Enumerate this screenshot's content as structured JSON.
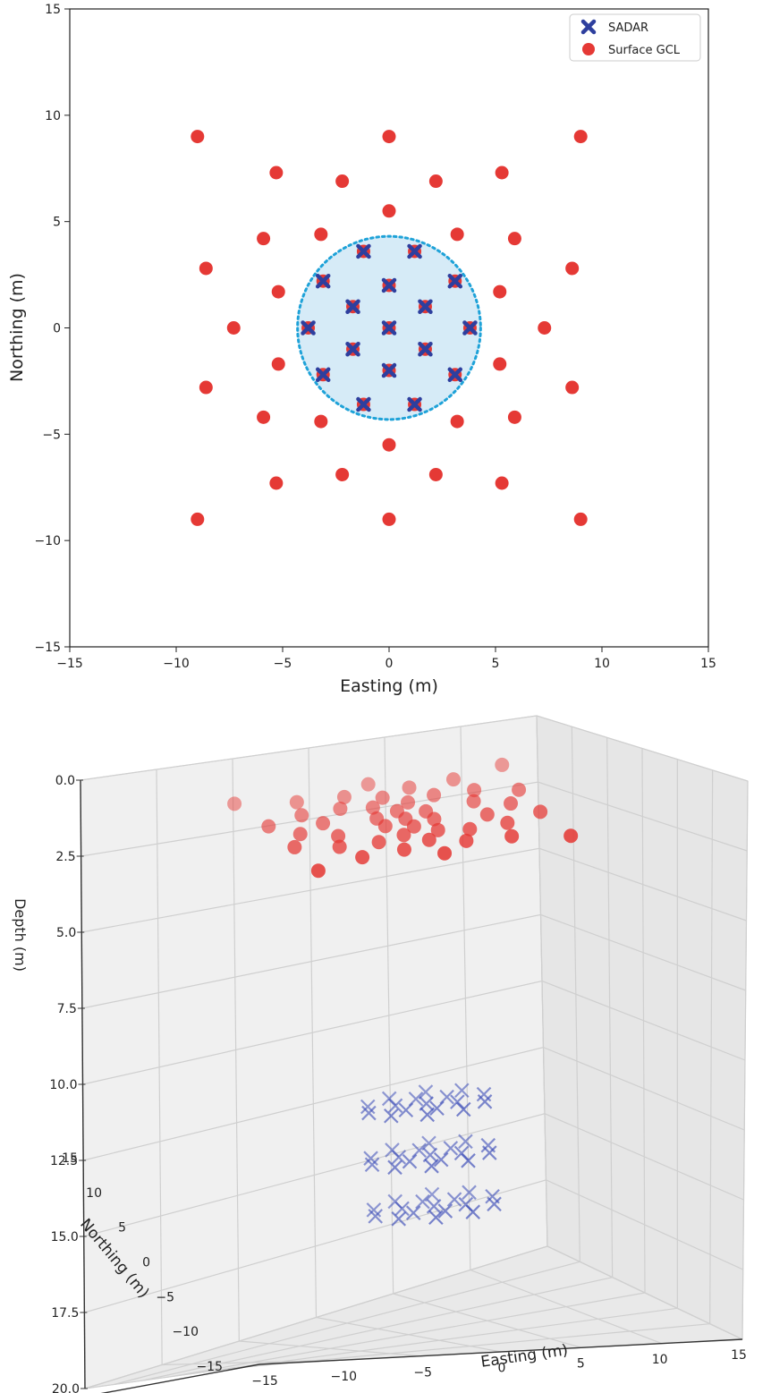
{
  "chart_data": [
    {
      "type": "scatter",
      "xlabel": "Easting (m)",
      "ylabel": "Northing (m)",
      "xlim": [
        -15,
        15
      ],
      "ylim": [
        -15,
        15
      ],
      "xticks": [
        "−15",
        "−10",
        "−5",
        "0",
        "5",
        "10",
        "15"
      ],
      "yticks": [
        "15",
        "10",
        "5",
        "0",
        "−5",
        "−10",
        "−15"
      ],
      "xtick_values": [
        -15,
        -10,
        -5,
        0,
        5,
        10,
        15
      ],
      "ytick_values": [
        15,
        10,
        5,
        0,
        -5,
        -10,
        -15
      ],
      "legend": {
        "position": "top-right",
        "entries": [
          "SADAR",
          "Surface GCL"
        ]
      },
      "circle": {
        "center": [
          0,
          0
        ],
        "radius": 4.3
      },
      "series": [
        {
          "name": "SADAR",
          "marker": "X",
          "color": "#2e3f9e",
          "points": [
            [
              -1.2,
              3.6
            ],
            [
              1.2,
              3.6
            ],
            [
              -3.1,
              2.2
            ],
            [
              0,
              2.0
            ],
            [
              3.1,
              2.2
            ],
            [
              -1.7,
              1.0
            ],
            [
              1.7,
              1.0
            ],
            [
              -3.8,
              0
            ],
            [
              0,
              0
            ],
            [
              3.8,
              0
            ],
            [
              -1.7,
              -1.0
            ],
            [
              1.7,
              -1.0
            ],
            [
              -3.1,
              -2.2
            ],
            [
              0,
              -2.0
            ],
            [
              3.1,
              -2.2
            ],
            [
              -1.2,
              -3.6
            ],
            [
              1.2,
              -3.6
            ]
          ]
        },
        {
          "name": "Surface GCL",
          "marker": "o",
          "color": "#e53935",
          "points": [
            [
              -9,
              9
            ],
            [
              0,
              9
            ],
            [
              9,
              9
            ],
            [
              -5.3,
              7.3
            ],
            [
              -2.2,
              6.9
            ],
            [
              2.2,
              6.9
            ],
            [
              5.3,
              7.3
            ],
            [
              0,
              5.5
            ],
            [
              -5.9,
              4.2
            ],
            [
              -3.2,
              4.4
            ],
            [
              3.2,
              4.4
            ],
            [
              5.9,
              4.2
            ],
            [
              -8.6,
              2.8
            ],
            [
              8.6,
              2.8
            ],
            [
              -5.2,
              1.7
            ],
            [
              5.2,
              1.7
            ],
            [
              -7.3,
              0
            ],
            [
              7.3,
              0
            ],
            [
              -5.2,
              -1.7
            ],
            [
              5.2,
              -1.7
            ],
            [
              -8.6,
              -2.8
            ],
            [
              8.6,
              -2.8
            ],
            [
              -5.9,
              -4.2
            ],
            [
              -3.2,
              -4.4
            ],
            [
              3.2,
              -4.4
            ],
            [
              5.9,
              -4.2
            ],
            [
              0,
              -5.5
            ],
            [
              -5.3,
              -7.3
            ],
            [
              -2.2,
              -6.9
            ],
            [
              2.2,
              -6.9
            ],
            [
              5.3,
              -7.3
            ],
            [
              -9,
              -9
            ],
            [
              0,
              -9
            ],
            [
              9,
              -9
            ],
            [
              -1.2,
              3.6
            ],
            [
              1.2,
              3.6
            ],
            [
              -3.1,
              2.2
            ],
            [
              0,
              2.0
            ],
            [
              3.1,
              2.2
            ],
            [
              -1.7,
              1.0
            ],
            [
              1.7,
              1.0
            ],
            [
              -3.8,
              0
            ],
            [
              0,
              0
            ],
            [
              3.8,
              0
            ],
            [
              -1.7,
              -1.0
            ],
            [
              1.7,
              -1.0
            ],
            [
              -3.1,
              -2.2
            ],
            [
              0,
              -2.0
            ],
            [
              3.1,
              -2.2
            ],
            [
              -1.2,
              -3.6
            ],
            [
              1.2,
              -3.6
            ]
          ]
        }
      ]
    },
    {
      "type": "scatter3d",
      "xlabel": "Easting (m)",
      "ylabel": "Northing (m)",
      "zlabel": "Depth (m)",
      "xlim": [
        -15,
        15
      ],
      "ylim": [
        -15,
        15
      ],
      "zlim": [
        0,
        20
      ],
      "zinverted": true,
      "xticks": [
        "−15",
        "−10",
        "−5",
        "0",
        "5",
        "10",
        "15"
      ],
      "yticks": [
        "15",
        "10",
        "5",
        "0",
        "−5",
        "−10",
        "−15"
      ],
      "zticks": [
        "0.0",
        "2.5",
        "5.0",
        "7.5",
        "10.0",
        "12.5",
        "15.0",
        "17.5",
        "20.0"
      ],
      "xtick_values": [
        -15,
        -10,
        -5,
        0,
        5,
        10,
        15
      ],
      "ytick_values": [
        15,
        10,
        5,
        0,
        -5,
        -10,
        -15
      ],
      "ztick_values": [
        0,
        2.5,
        5,
        7.5,
        10,
        12.5,
        15,
        17.5,
        20
      ],
      "series": [
        {
          "name": "Surface GCL",
          "marker": "o",
          "color": "#e53935",
          "depth": 0,
          "points": [
            [
              -9,
              9
            ],
            [
              0,
              9
            ],
            [
              9,
              9
            ],
            [
              -5.3,
              7.3
            ],
            [
              -2.2,
              6.9
            ],
            [
              2.2,
              6.9
            ],
            [
              5.3,
              7.3
            ],
            [
              0,
              5.5
            ],
            [
              -5.9,
              4.2
            ],
            [
              -3.2,
              4.4
            ],
            [
              3.2,
              4.4
            ],
            [
              5.9,
              4.2
            ],
            [
              -8.6,
              2.8
            ],
            [
              8.6,
              2.8
            ],
            [
              -5.2,
              1.7
            ],
            [
              5.2,
              1.7
            ],
            [
              -7.3,
              0
            ],
            [
              7.3,
              0
            ],
            [
              -5.2,
              -1.7
            ],
            [
              5.2,
              -1.7
            ],
            [
              -8.6,
              -2.8
            ],
            [
              8.6,
              -2.8
            ],
            [
              -5.9,
              -4.2
            ],
            [
              -3.2,
              -4.4
            ],
            [
              3.2,
              -4.4
            ],
            [
              5.9,
              -4.2
            ],
            [
              0,
              -5.5
            ],
            [
              -5.3,
              -7.3
            ],
            [
              -2.2,
              -6.9
            ],
            [
              2.2,
              -6.9
            ],
            [
              5.3,
              -7.3
            ],
            [
              -9,
              -9
            ],
            [
              0,
              -9
            ],
            [
              9,
              -9
            ],
            [
              -1.2,
              3.6
            ],
            [
              1.2,
              3.6
            ],
            [
              0,
              2.0
            ],
            [
              -1.7,
              1.0
            ],
            [
              1.7,
              1.0
            ],
            [
              0,
              0
            ],
            [
              -1.7,
              -1.0
            ],
            [
              1.7,
              -1.0
            ],
            [
              0,
              -2.0
            ],
            [
              -1.2,
              -3.6
            ],
            [
              1.2,
              -3.6
            ]
          ]
        },
        {
          "name": "SADAR",
          "marker": "x",
          "color": "#3b4cb8",
          "depths": [
            12,
            14,
            16
          ],
          "points": [
            [
              -1.2,
              3.6
            ],
            [
              1.2,
              3.6
            ],
            [
              -3.1,
              2.2
            ],
            [
              0,
              2.0
            ],
            [
              3.1,
              2.2
            ],
            [
              -1.7,
              1.0
            ],
            [
              1.7,
              1.0
            ],
            [
              -3.8,
              0
            ],
            [
              0,
              0
            ],
            [
              3.8,
              0
            ],
            [
              -1.7,
              -1.0
            ],
            [
              1.7,
              -1.0
            ],
            [
              -3.1,
              -2.2
            ],
            [
              0,
              -2.0
            ],
            [
              3.1,
              -2.2
            ],
            [
              -1.2,
              -3.6
            ],
            [
              1.2,
              -3.6
            ]
          ]
        }
      ]
    }
  ]
}
